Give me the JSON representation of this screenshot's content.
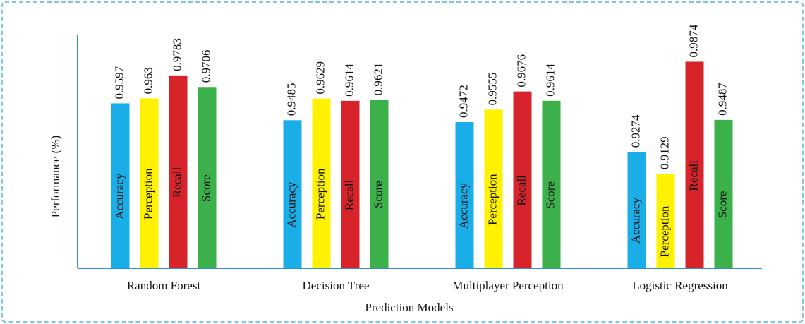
{
  "chart_data": {
    "type": "bar",
    "xlabel": "Prediction Models",
    "ylabel": "Performance (%)",
    "categories": [
      "Random Forest",
      "Decision Tree",
      "Multiplayer Perception",
      "Logistic Regression"
    ],
    "series": [
      {
        "name": "Accuracy",
        "color": "#1aaee8",
        "values": [
          0.9597,
          0.9485,
          0.9472,
          0.9274
        ]
      },
      {
        "name": "Perception",
        "color": "#fff200",
        "values": [
          0.963,
          0.9629,
          0.9555,
          0.9129
        ]
      },
      {
        "name": "Recall",
        "color": "#d7242a",
        "values": [
          0.9783,
          0.9614,
          0.9676,
          0.9874
        ]
      },
      {
        "name": "Score",
        "color": "#3bb04b",
        "values": [
          0.9706,
          0.9621,
          0.9614,
          0.9487
        ]
      }
    ],
    "ylim": [
      0.85,
      1.005
    ]
  }
}
